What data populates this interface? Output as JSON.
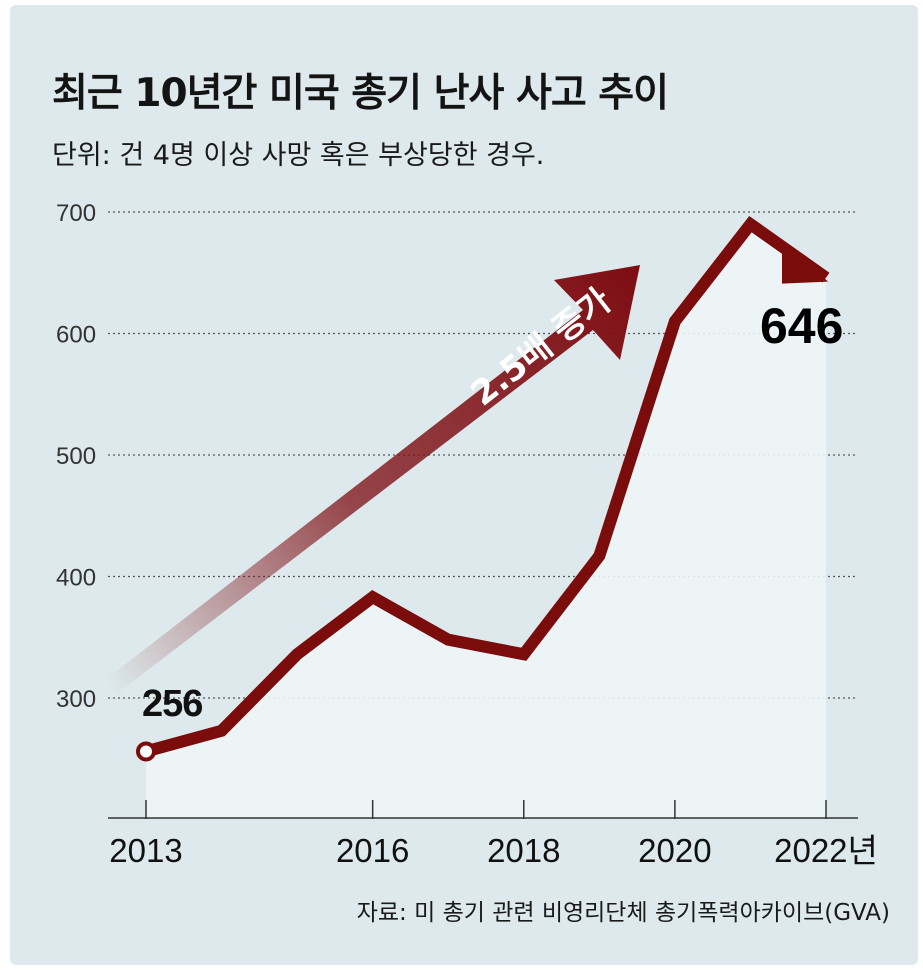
{
  "title": "최근 10년간 미국 총기 난사 사고 추이",
  "subtitle": "단위: 건   4명 이상 사망 혹은 부상당한 경우.",
  "source": "자료: 미 총기 관련 비영리단체 총기폭력아카이브(GVA)",
  "colors": {
    "background": "#dde9ec",
    "line": "#7a0c0c",
    "area": "#eef5f7",
    "arrow": "#7d0d12",
    "grid": "#555555",
    "text": "#141414"
  },
  "chart_data": {
    "type": "line",
    "title": "최근 10년간 미국 총기 난사 사고 추이",
    "ylabel": "건",
    "xlabel": "",
    "x": [
      2013,
      2014,
      2015,
      2016,
      2017,
      2018,
      2019,
      2020,
      2021,
      2022
    ],
    "values": [
      256,
      273,
      336,
      383,
      348,
      336,
      417,
      610,
      690,
      646
    ],
    "ylim": [
      200,
      700
    ],
    "yticks": [
      300,
      400,
      500,
      600,
      700
    ],
    "xtick_labels": [
      {
        "x": 2013,
        "label": "2013"
      },
      {
        "x": 2016,
        "label": "2016"
      },
      {
        "x": 2018,
        "label": "2018"
      },
      {
        "x": 2020,
        "label": "2020"
      },
      {
        "x": 2022,
        "label": "2022년"
      }
    ],
    "grid": true,
    "annotations": {
      "start_value": "256",
      "end_value": "646",
      "arrow_label": "2.5배 증가"
    }
  }
}
